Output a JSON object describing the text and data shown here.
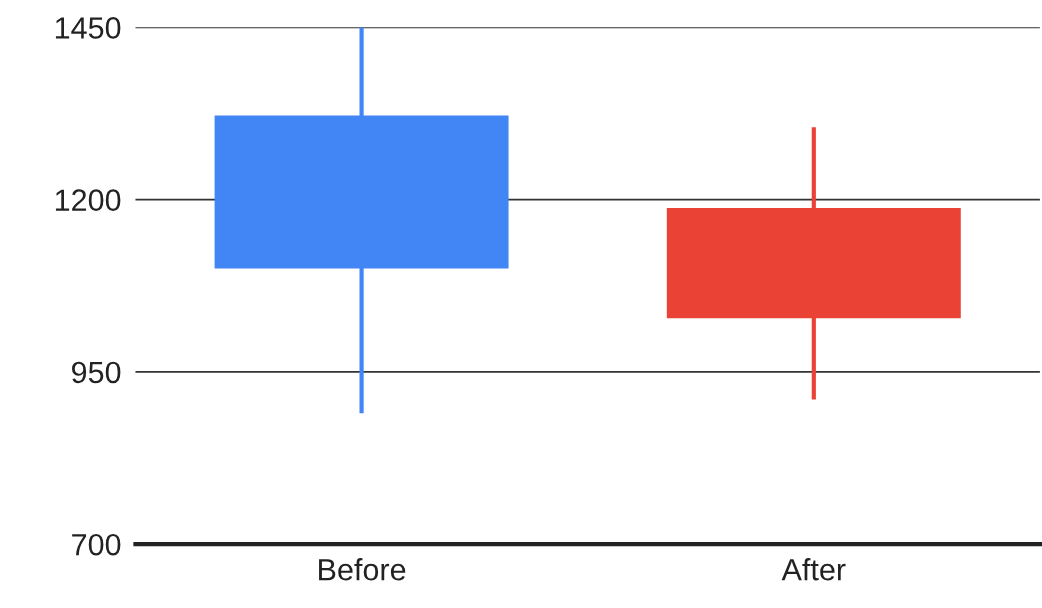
{
  "chart_data": {
    "type": "candlestick",
    "categories": [
      "Before",
      "After"
    ],
    "ohlc": [
      [
        1100,
        1450,
        890,
        1322
      ],
      [
        1188,
        1305,
        910,
        1028
      ]
    ],
    "colors": [
      "#4285f4",
      "#ea4335"
    ],
    "ylim": [
      700,
      1450
    ],
    "yticks": [
      700,
      950,
      1200,
      1450
    ],
    "grid": "y"
  }
}
